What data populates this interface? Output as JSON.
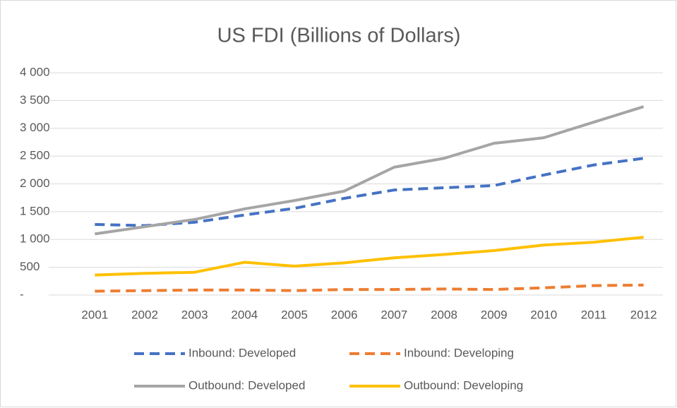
{
  "chart_data": {
    "type": "line",
    "title": "US FDI (Billions of Dollars)",
    "categories": [
      "2001",
      "2002",
      "2003",
      "2004",
      "2005",
      "2006",
      "2007",
      "2008",
      "2009",
      "2010",
      "2011",
      "2012"
    ],
    "series": [
      {
        "name": "Inbound: Developed",
        "color": "#4472c4",
        "dashed": true,
        "values": [
          1270,
          1250,
          1310,
          1440,
          1560,
          1740,
          1890,
          1930,
          1970,
          2160,
          2340,
          2460
        ]
      },
      {
        "name": "Inbound: Developing",
        "color": "#ed7d31",
        "dashed": true,
        "values": [
          70,
          80,
          90,
          90,
          80,
          100,
          100,
          110,
          100,
          130,
          170,
          180
        ]
      },
      {
        "name": "Outbound: Developed",
        "color": "#a5a5a5",
        "dashed": false,
        "values": [
          1100,
          1230,
          1360,
          1550,
          1700,
          1870,
          2300,
          2460,
          2730,
          2830,
          3110,
          3390
        ]
      },
      {
        "name": "Outbound: Developing",
        "color": "#ffc000",
        "dashed": false,
        "values": [
          360,
          390,
          410,
          590,
          520,
          580,
          670,
          730,
          800,
          900,
          950,
          1040
        ]
      }
    ],
    "ylim": [
      0,
      4000
    ],
    "yticks": [
      {
        "value": 0,
        "label": "-"
      },
      500,
      {
        "value": 1000,
        "label": "1 000"
      },
      {
        "value": 1500,
        "label": "1 500"
      },
      {
        "value": 2000,
        "label": "2 000"
      },
      {
        "value": 2500,
        "label": "2 500"
      },
      {
        "value": 3000,
        "label": "3 000"
      },
      {
        "value": 3500,
        "label": "3 500"
      },
      {
        "value": 4000,
        "label": "4 000"
      }
    ],
    "grid": true,
    "legend": "bottom"
  }
}
